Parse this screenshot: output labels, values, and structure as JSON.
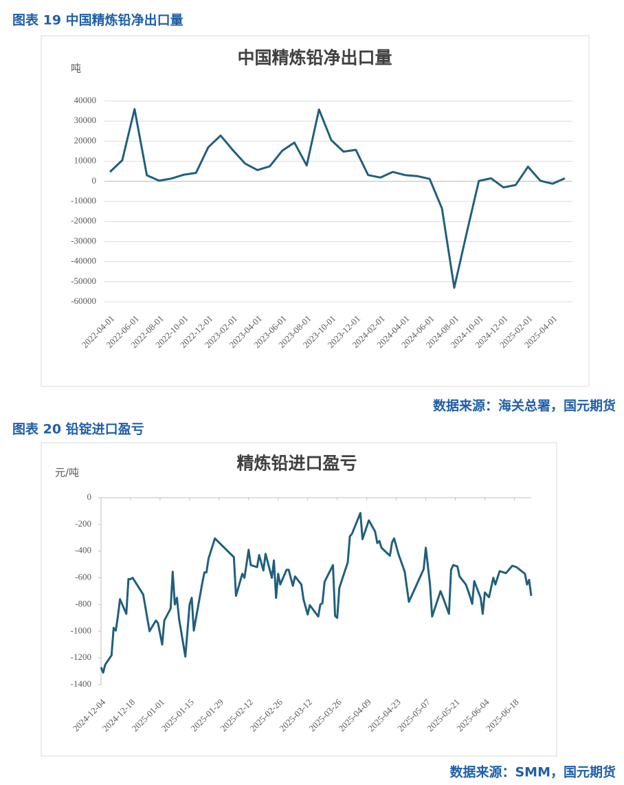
{
  "figures": [
    {
      "caption": "图表 19 中国精炼铅净出口量",
      "source": "数据来源：海关总署，国元期货"
    },
    {
      "caption": "图表 20 铅锭进口盈亏",
      "source": "数据来源：SMM，国元期货"
    }
  ],
  "chart_data": [
    {
      "type": "line",
      "title": "中国精炼铅净出口量",
      "y_label": "吨",
      "categories": [
        "2022-04-01",
        null,
        "2022-06-01",
        null,
        "2022-08-01",
        null,
        "2022-10-01",
        null,
        "2022-12-01",
        null,
        "2023-02-01",
        null,
        "2023-04-01",
        null,
        "2023-06-01",
        null,
        "2023-08-01",
        null,
        "2023-10-01",
        null,
        "2023-12-01",
        null,
        "2024-02-01",
        null,
        "2024-04-01",
        null,
        "2024-06-01",
        null,
        "2024-08-01",
        null,
        "2024-10-01",
        null,
        "2024-12-01",
        null,
        "2025-02-01",
        null,
        "2025-04-01",
        null
      ],
      "values": [
        4700,
        10500,
        36000,
        3000,
        300,
        1400,
        3300,
        4200,
        17000,
        22800,
        15500,
        8800,
        5600,
        7500,
        15200,
        19300,
        7900,
        35800,
        20500,
        14800,
        15700,
        3100,
        1900,
        4700,
        3100,
        2600,
        1200,
        -13500,
        -53000,
        -26000,
        200,
        1500,
        -3000,
        -1800,
        7300,
        300,
        -1200,
        1500
      ],
      "color": "#1f5f7d",
      "ylim": [
        -60000,
        40000
      ],
      "yticks": [
        -60000,
        -50000,
        -40000,
        -30000,
        -20000,
        -10000,
        0,
        10000,
        20000,
        30000,
        40000
      ],
      "grid": true
    },
    {
      "type": "line",
      "title": "精炼铅进口盈亏",
      "y_label": "元/吨",
      "x": [
        "2024-12-04",
        "2024-12-05",
        "2024-12-06",
        "2024-12-09",
        "2024-12-10",
        "2024-12-11",
        "2024-12-12",
        "2024-12-13",
        "2024-12-16",
        "2024-12-17",
        "2024-12-18",
        "2024-12-19",
        "2024-12-24",
        "2024-12-27",
        "2024-12-30",
        "2024-12-31",
        "2025-01-02",
        "2025-01-03",
        "2025-01-06",
        "2025-01-07",
        "2025-01-08",
        "2025-01-09",
        "2025-01-10",
        "2025-01-13",
        "2025-01-15",
        "2025-01-16",
        "2025-01-17",
        "2025-01-21",
        "2025-01-22",
        "2025-01-23",
        "2025-01-24",
        "2025-01-27",
        "2025-02-05",
        "2025-02-06",
        "2025-02-09",
        "2025-02-10",
        "2025-02-12",
        "2025-02-13",
        "2025-02-16",
        "2025-02-17",
        "2025-02-19",
        "2025-02-20",
        "2025-02-23",
        "2025-02-24",
        "2025-02-25",
        "2025-02-26",
        "2025-02-27",
        "2025-03-02",
        "2025-03-03",
        "2025-03-05",
        "2025-03-06",
        "2025-03-09",
        "2025-03-10",
        "2025-03-12",
        "2025-03-13",
        "2025-03-17",
        "2025-03-18",
        "2025-03-19",
        "2025-03-20",
        "2025-03-24",
        "2025-03-25",
        "2025-03-26",
        "2025-03-27",
        "2025-03-31",
        "2025-04-01",
        "2025-04-02",
        "2025-04-06",
        "2025-04-07",
        "2025-04-10",
        "2025-04-13",
        "2025-04-14",
        "2025-04-15",
        "2025-04-16",
        "2025-04-20",
        "2025-04-21",
        "2025-04-22",
        "2025-04-24",
        "2025-04-27",
        "2025-04-29",
        "2025-05-06",
        "2025-05-07",
        "2025-05-09",
        "2025-05-10",
        "2025-05-14",
        "2025-05-15",
        "2025-05-18",
        "2025-05-19",
        "2025-05-20",
        "2025-05-22",
        "2025-05-23",
        "2025-05-26",
        "2025-05-28",
        "2025-05-29",
        "2025-05-30",
        "2025-06-02",
        "2025-06-03",
        "2025-06-04",
        "2025-06-06",
        "2025-06-08",
        "2025-06-09",
        "2025-06-11",
        "2025-06-12",
        "2025-06-14",
        "2025-06-17",
        "2025-06-19",
        "2025-06-23",
        "2025-06-24",
        "2025-06-25",
        "2025-06-26"
      ],
      "values": [
        -1270,
        -1310,
        -1250,
        -1180,
        -975,
        -995,
        -890,
        -760,
        -870,
        -610,
        -610,
        -600,
        -725,
        -1000,
        -920,
        -940,
        -1100,
        -920,
        -830,
        -555,
        -800,
        -750,
        -905,
        -1190,
        -800,
        -750,
        -995,
        -640,
        -560,
        -560,
        -455,
        -305,
        -445,
        -735,
        -570,
        -600,
        -390,
        -505,
        -520,
        -430,
        -545,
        -420,
        -600,
        -470,
        -750,
        -570,
        -650,
        -540,
        -540,
        -660,
        -590,
        -650,
        -760,
        -875,
        -805,
        -890,
        -800,
        -790,
        -630,
        -505,
        -885,
        -900,
        -675,
        -485,
        -290,
        -270,
        -115,
        -310,
        -170,
        -255,
        -340,
        -325,
        -375,
        -435,
        -335,
        -305,
        -420,
        -555,
        -780,
        -535,
        -375,
        -650,
        -890,
        -700,
        -740,
        -870,
        -540,
        -505,
        -515,
        -590,
        -650,
        -740,
        -795,
        -625,
        -750,
        -870,
        -710,
        -745,
        -600,
        -650,
        -550,
        -555,
        -565,
        -510,
        -520,
        -570,
        -650,
        -615,
        -735
      ],
      "color": "#1f5f7d",
      "xlim": [
        "2024-12-04",
        "2025-06-26"
      ],
      "xticks": [
        "2024-12-04",
        "2024-12-18",
        "2025-01-01",
        "2025-01-15",
        "2025-01-29",
        "2025-02-12",
        "2025-02-26",
        "2025-03-12",
        "2025-03-26",
        "2025-04-09",
        "2025-04-23",
        "2025-05-07",
        "2025-05-21",
        "2025-06-04",
        "2025-06-18"
      ],
      "ylim": [
        -1400,
        0
      ],
      "yticks": [
        -1400,
        -1200,
        -1000,
        -800,
        -600,
        -400,
        -200,
        0
      ],
      "grid": false
    }
  ]
}
